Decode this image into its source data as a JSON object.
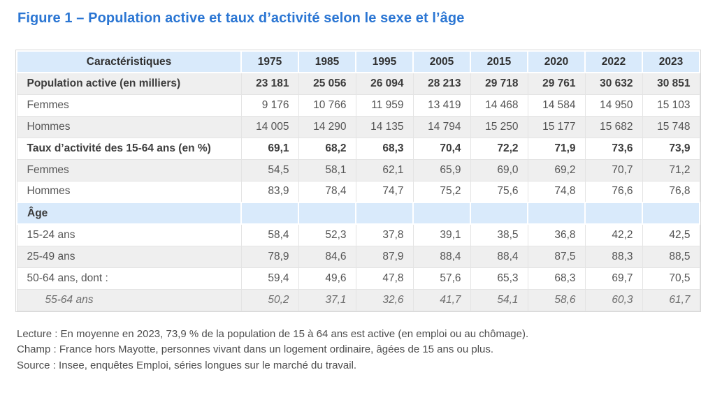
{
  "title": "Figure 1 – Population active et taux d’activité selon le sexe et l’âge",
  "table": {
    "columns": [
      "Caractéristiques",
      "1975",
      "1985",
      "1995",
      "2005",
      "2015",
      "2020",
      "2022",
      "2023"
    ],
    "rows": [
      {
        "label": "Population active (en milliers)",
        "bg": "gray",
        "bold": true,
        "italic": false,
        "indent": false,
        "values": [
          "23 181",
          "25 056",
          "26 094",
          "28 213",
          "29 718",
          "29 761",
          "30 632",
          "30 851"
        ]
      },
      {
        "label": "Femmes",
        "bg": "white",
        "bold": false,
        "italic": false,
        "indent": false,
        "values": [
          "9 176",
          "10 766",
          "11 959",
          "13 419",
          "14 468",
          "14 584",
          "14 950",
          "15 103"
        ]
      },
      {
        "label": "Hommes",
        "bg": "gray",
        "bold": false,
        "italic": false,
        "indent": false,
        "values": [
          "14 005",
          "14 290",
          "14 135",
          "14 794",
          "15 250",
          "15 177",
          "15 682",
          "15 748"
        ]
      },
      {
        "label": "Taux d’activité des 15-64 ans (en %)",
        "bg": "white",
        "bold": true,
        "italic": false,
        "indent": false,
        "values": [
          "69,1",
          "68,2",
          "68,3",
          "70,4",
          "72,2",
          "71,9",
          "73,6",
          "73,9"
        ]
      },
      {
        "label": "Femmes",
        "bg": "gray",
        "bold": false,
        "italic": false,
        "indent": false,
        "values": [
          "54,5",
          "58,1",
          "62,1",
          "65,9",
          "69,0",
          "69,2",
          "70,7",
          "71,2"
        ]
      },
      {
        "label": "Hommes",
        "bg": "white",
        "bold": false,
        "italic": false,
        "indent": false,
        "values": [
          "83,9",
          "78,4",
          "74,7",
          "75,2",
          "75,6",
          "74,8",
          "76,6",
          "76,8"
        ]
      },
      {
        "label": "Âge",
        "bg": "blue",
        "bold": true,
        "italic": false,
        "indent": false,
        "values": [
          "",
          "",
          "",
          "",
          "",
          "",
          "",
          ""
        ]
      },
      {
        "label": "15-24 ans",
        "bg": "white",
        "bold": false,
        "italic": false,
        "indent": false,
        "values": [
          "58,4",
          "52,3",
          "37,8",
          "39,1",
          "38,5",
          "36,8",
          "42,2",
          "42,5"
        ]
      },
      {
        "label": "25-49 ans",
        "bg": "gray",
        "bold": false,
        "italic": false,
        "indent": false,
        "values": [
          "78,9",
          "84,6",
          "87,9",
          "88,4",
          "88,4",
          "87,5",
          "88,3",
          "88,5"
        ]
      },
      {
        "label": "50-64 ans, dont :",
        "bg": "white",
        "bold": false,
        "italic": false,
        "indent": false,
        "values": [
          "59,4",
          "49,6",
          "47,8",
          "57,6",
          "65,3",
          "68,3",
          "69,7",
          "70,5"
        ]
      },
      {
        "label": "55-64 ans",
        "bg": "gray",
        "bold": false,
        "italic": true,
        "indent": true,
        "values": [
          "50,2",
          "37,1",
          "32,6",
          "41,7",
          "54,1",
          "58,6",
          "60,3",
          "61,7"
        ]
      }
    ]
  },
  "notes": [
    "Lecture : En moyenne en 2023, 73,9 % de la population de 15 à 64 ans est active (en emploi ou au chômage).",
    "Champ : France hors Mayotte, personnes vivant dans un logement ordinaire, âgées de 15 ans ou plus.",
    "Source : Insee, enquêtes Emploi, séries longues sur le marché du travail."
  ],
  "colors": {
    "title_blue": "#2b76d3",
    "header_blue": "#d9eafb",
    "stripe_gray": "#efefef",
    "border_gray": "#e4e4e4",
    "text_gray": "#555555"
  },
  "chart_data": {
    "type": "table",
    "title": "Figure 1 – Population active et taux d’activité selon le sexe et l’âge",
    "columns": [
      "1975",
      "1985",
      "1995",
      "2005",
      "2015",
      "2020",
      "2022",
      "2023"
    ],
    "rows": [
      {
        "label": "Population active (en milliers)",
        "values": [
          23181,
          25056,
          26094,
          28213,
          29718,
          29761,
          30632,
          30851
        ]
      },
      {
        "label": "Femmes (population active, en milliers)",
        "values": [
          9176,
          10766,
          11959,
          13419,
          14468,
          14584,
          14950,
          15103
        ]
      },
      {
        "label": "Hommes (population active, en milliers)",
        "values": [
          14005,
          14290,
          14135,
          14794,
          15250,
          15177,
          15682,
          15748
        ]
      },
      {
        "label": "Taux d’activité des 15-64 ans (en %)",
        "values": [
          69.1,
          68.2,
          68.3,
          70.4,
          72.2,
          71.9,
          73.6,
          73.9
        ]
      },
      {
        "label": "Femmes (taux d’activité, en %)",
        "values": [
          54.5,
          58.1,
          62.1,
          65.9,
          69.0,
          69.2,
          70.7,
          71.2
        ]
      },
      {
        "label": "Hommes (taux d’activité, en %)",
        "values": [
          83.9,
          78.4,
          74.7,
          75.2,
          75.6,
          74.8,
          76.6,
          76.8
        ]
      },
      {
        "label": "15-24 ans (taux d’activité, en %)",
        "values": [
          58.4,
          52.3,
          37.8,
          39.1,
          38.5,
          36.8,
          42.2,
          42.5
        ]
      },
      {
        "label": "25-49 ans (taux d’activité, en %)",
        "values": [
          78.9,
          84.6,
          87.9,
          88.4,
          88.4,
          87.5,
          88.3,
          88.5
        ]
      },
      {
        "label": "50-64 ans, dont : (taux d’activité, en %)",
        "values": [
          59.4,
          49.6,
          47.8,
          57.6,
          65.3,
          68.3,
          69.7,
          70.5
        ]
      },
      {
        "label": "55-64 ans (taux d’activité, en %)",
        "values": [
          50.2,
          37.1,
          32.6,
          41.7,
          54.1,
          58.6,
          60.3,
          61.7
        ]
      }
    ]
  }
}
